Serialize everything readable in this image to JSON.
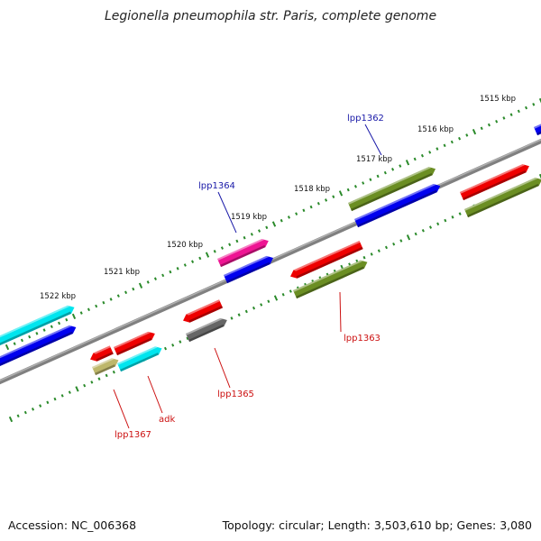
{
  "title": "Legionella pneumophila str. Paris, complete genome",
  "footer": {
    "accession": "Accession: NC_006368",
    "summary": "Topology: circular; Length: 3,503,610 bp; Genes: 3,080"
  },
  "colors": {
    "backbone": "#808080",
    "tick": "#2a8a2a",
    "label_forward": "#1a1aa8",
    "label_reverse": "#cc1111"
  },
  "kbp_ticks": [
    {
      "label": "1515 kbp"
    },
    {
      "label": "1516 kbp"
    },
    {
      "label": "1517 kbp"
    },
    {
      "label": "1518 kbp"
    },
    {
      "label": "1519 kbp"
    },
    {
      "label": "1520 kbp"
    },
    {
      "label": "1521 kbp"
    },
    {
      "label": "1522 kbp"
    }
  ],
  "gene_labels": [
    {
      "name": "lpp1362",
      "strand": "forward"
    },
    {
      "name": "lpp1364",
      "strand": "forward"
    },
    {
      "name": "lpp1363",
      "strand": "reverse"
    },
    {
      "name": "lpp1365",
      "strand": "reverse"
    },
    {
      "name": "adk",
      "strand": "reverse"
    },
    {
      "name": "lpp1367",
      "strand": "reverse"
    }
  ],
  "feature_colors": {
    "red": "#ee0000",
    "blue": "#0000ee",
    "olive": "#6b8e23",
    "cyan": "#00e5ee",
    "magenta": "#ee1493",
    "gray": "#666666",
    "khaki": "#bdb76b"
  }
}
